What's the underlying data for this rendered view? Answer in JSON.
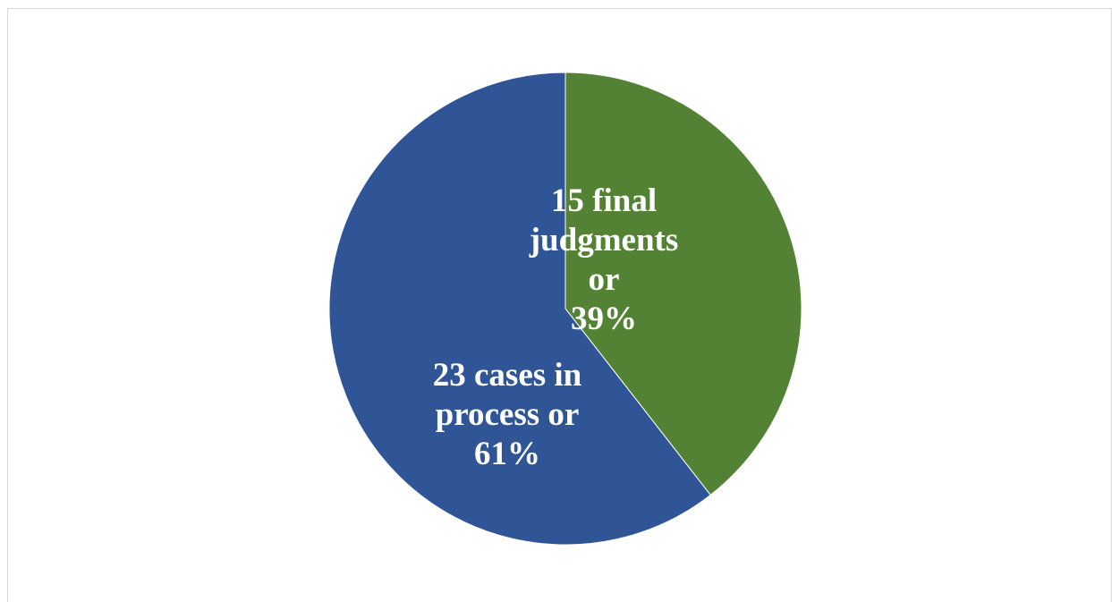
{
  "chart_data": {
    "type": "pie",
    "title": "",
    "start_angle_deg": 0,
    "direction": "clockwise",
    "slices": [
      {
        "value": 15,
        "percent": 39,
        "color": "#548235",
        "label_lines": [
          "15 final",
          "judgments",
          "or",
          "39%"
        ]
      },
      {
        "value": 23,
        "percent": 61,
        "color": "#2f5597",
        "label_lines": [
          "23 cases in",
          "process or",
          "61%"
        ]
      }
    ]
  }
}
